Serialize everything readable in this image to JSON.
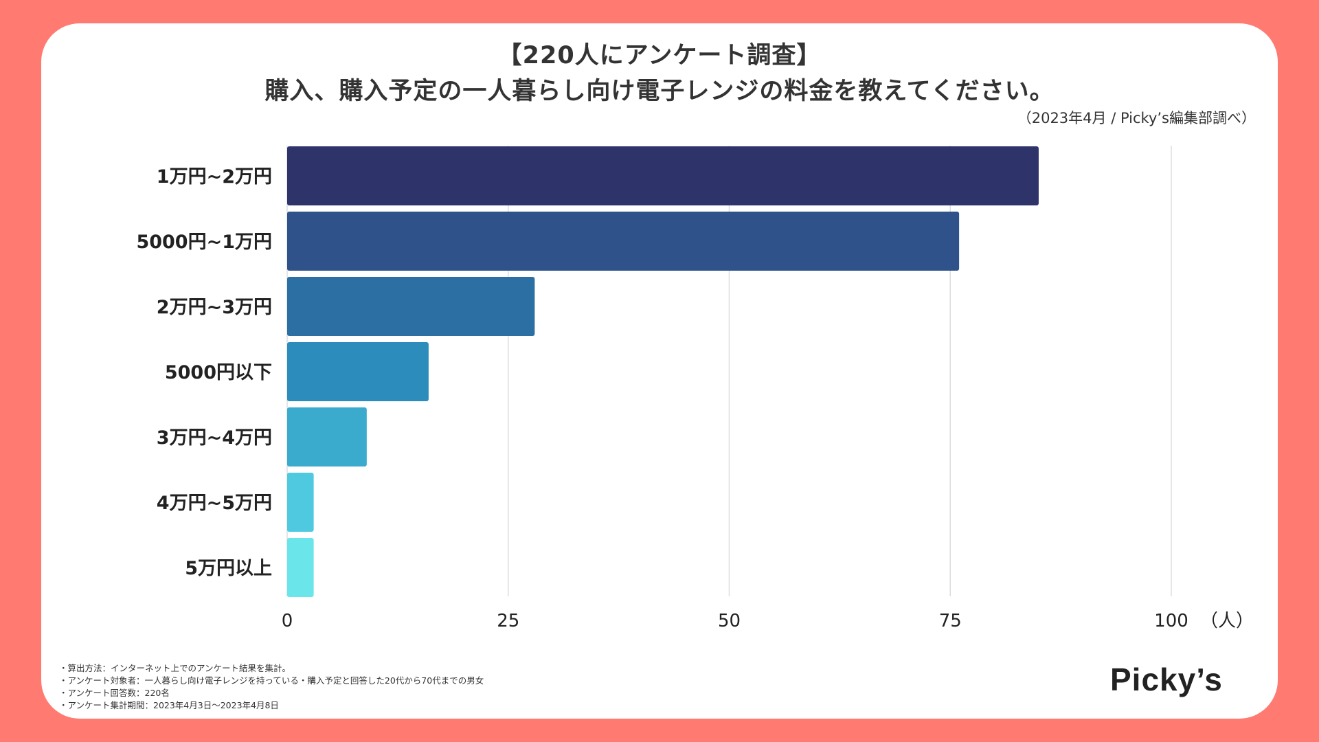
{
  "header": {
    "title_line1": "【220人にアンケート調査】",
    "title_line2": "購入、購入予定の一人暮らし向け電子レンジの料金を教えてください。",
    "source": "（2023年4月 / Picky’s編集部調べ）"
  },
  "chart_data": {
    "type": "bar",
    "orientation": "horizontal",
    "categories": [
      "1万円~2万円",
      "5000円~1万円",
      "2万円~3万円",
      "5000円以下",
      "3万円~4万円",
      "4万円~5万円",
      "5万円以上"
    ],
    "values": [
      85,
      76,
      28,
      16,
      9,
      3,
      3
    ],
    "colors": [
      "#2e3369",
      "#30528a",
      "#2c6fa3",
      "#2c8cbb",
      "#3aaacd",
      "#4ec9df",
      "#6ae6ea"
    ],
    "xlim": [
      0,
      100
    ],
    "xticks": [
      "0",
      "25",
      "50",
      "75",
      "100"
    ],
    "xtick_values": [
      0,
      25,
      50,
      75,
      100
    ],
    "unit": "（人）",
    "grid": true
  },
  "notes": [
    "・算出方法：インターネット上でのアンケート結果を集計。",
    "・アンケート対象者：一人暮らし向け電子レンジを持っている・購入予定と回答した20代から70代までの男女",
    "・アンケート回答数：220名",
    "・アンケート集計期間：2023年4月3日〜2023年4月8日"
  ],
  "brand": {
    "logo_text": "Picky’s",
    "background_color": "#ff7b72"
  }
}
